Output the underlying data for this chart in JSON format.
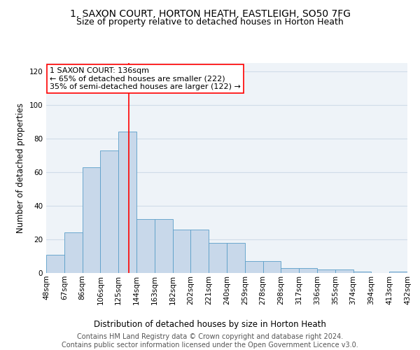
{
  "title": "1, SAXON COURT, HORTON HEATH, EASTLEIGH, SO50 7FG",
  "subtitle": "Size of property relative to detached houses in Horton Heath",
  "xlabel": "Distribution of detached houses by size in Horton Heath",
  "ylabel": "Number of detached properties",
  "bar_heights": [
    11,
    24,
    63,
    73,
    84,
    32,
    32,
    26,
    26,
    18,
    18,
    7,
    7,
    3,
    3,
    2,
    2,
    1,
    0,
    1
  ],
  "tick_labels": [
    "48sqm",
    "67sqm",
    "86sqm",
    "106sqm",
    "125sqm",
    "144sqm",
    "163sqm",
    "182sqm",
    "202sqm",
    "221sqm",
    "240sqm",
    "259sqm",
    "278sqm",
    "298sqm",
    "317sqm",
    "336sqm",
    "355sqm",
    "374sqm",
    "394sqm",
    "413sqm",
    "432sqm"
  ],
  "bar_color": "#c8d8ea",
  "bar_edge_color": "#5a9ec8",
  "vline_pos": 4.58,
  "annotation_text": "1 SAXON COURT: 136sqm\n← 65% of detached houses are smaller (222)\n35% of semi-detached houses are larger (122) →",
  "annotation_box_color": "white",
  "annotation_box_edge_color": "red",
  "vline_color": "red",
  "footer_text": "Contains HM Land Registry data © Crown copyright and database right 2024.\nContains public sector information licensed under the Open Government Licence v3.0.",
  "ylim": [
    0,
    125
  ],
  "yticks": [
    0,
    20,
    40,
    60,
    80,
    100,
    120
  ],
  "background_color": "#eef3f8",
  "grid_color": "#d0dce8",
  "title_fontsize": 10,
  "subtitle_fontsize": 9,
  "axis_label_fontsize": 8.5,
  "tick_fontsize": 7.5,
  "annotation_fontsize": 8,
  "footer_fontsize": 7
}
